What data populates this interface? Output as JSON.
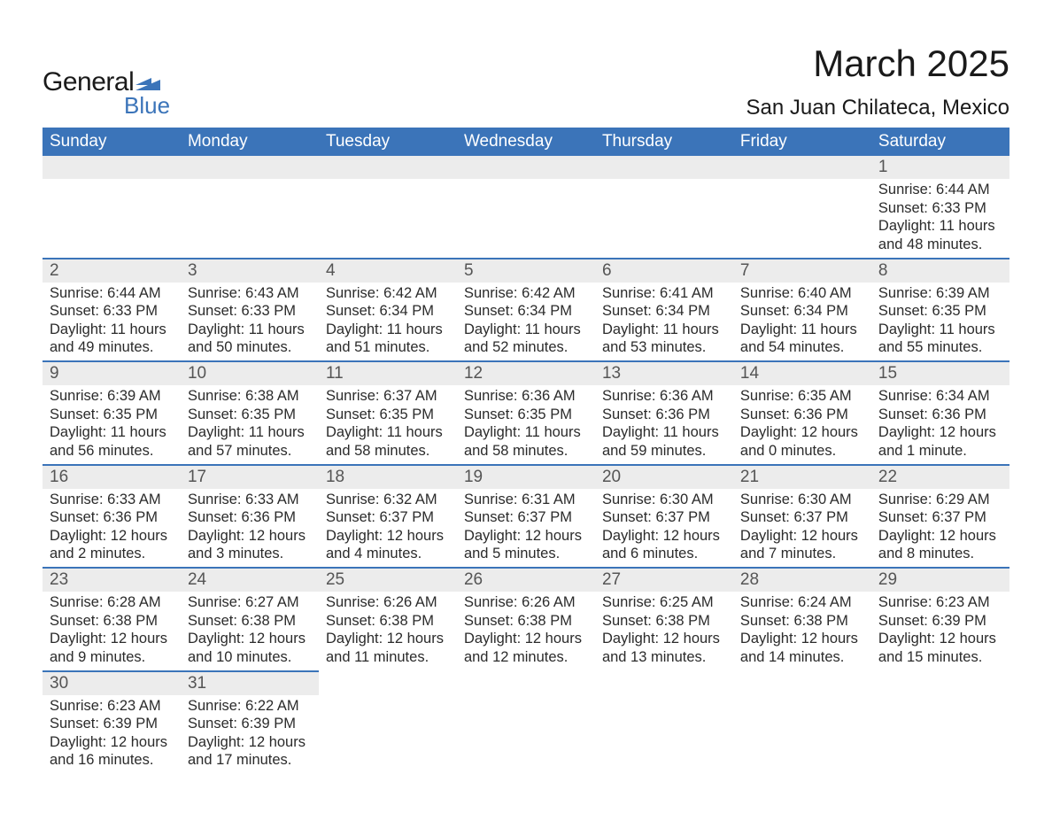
{
  "logo": {
    "text1": "General",
    "text2": "Blue",
    "flag_color": "#3b74b9"
  },
  "title": "March 2025",
  "location": "San Juan Chilateca, Mexico",
  "colors": {
    "header_bg": "#3b74b9",
    "header_text": "#ffffff",
    "daynum_bg": "#ececec",
    "daynum_text": "#555555",
    "row_border": "#3b74b9",
    "body_text": "#2b2b2b",
    "page_bg": "#ffffff"
  },
  "typography": {
    "title_fontsize": 42,
    "location_fontsize": 24,
    "header_fontsize": 19,
    "daynum_fontsize": 19,
    "body_fontsize": 16.5,
    "font_family": "Arial"
  },
  "weekdays": [
    "Sunday",
    "Monday",
    "Tuesday",
    "Wednesday",
    "Thursday",
    "Friday",
    "Saturday"
  ],
  "weeks": [
    [
      {
        "day": null
      },
      {
        "day": null
      },
      {
        "day": null
      },
      {
        "day": null
      },
      {
        "day": null
      },
      {
        "day": null
      },
      {
        "day": 1,
        "sunrise": "6:44 AM",
        "sunset": "6:33 PM",
        "daylight": "11 hours and 48 minutes."
      }
    ],
    [
      {
        "day": 2,
        "sunrise": "6:44 AM",
        "sunset": "6:33 PM",
        "daylight": "11 hours and 49 minutes."
      },
      {
        "day": 3,
        "sunrise": "6:43 AM",
        "sunset": "6:33 PM",
        "daylight": "11 hours and 50 minutes."
      },
      {
        "day": 4,
        "sunrise": "6:42 AM",
        "sunset": "6:34 PM",
        "daylight": "11 hours and 51 minutes."
      },
      {
        "day": 5,
        "sunrise": "6:42 AM",
        "sunset": "6:34 PM",
        "daylight": "11 hours and 52 minutes."
      },
      {
        "day": 6,
        "sunrise": "6:41 AM",
        "sunset": "6:34 PM",
        "daylight": "11 hours and 53 minutes."
      },
      {
        "day": 7,
        "sunrise": "6:40 AM",
        "sunset": "6:34 PM",
        "daylight": "11 hours and 54 minutes."
      },
      {
        "day": 8,
        "sunrise": "6:39 AM",
        "sunset": "6:35 PM",
        "daylight": "11 hours and 55 minutes."
      }
    ],
    [
      {
        "day": 9,
        "sunrise": "6:39 AM",
        "sunset": "6:35 PM",
        "daylight": "11 hours and 56 minutes."
      },
      {
        "day": 10,
        "sunrise": "6:38 AM",
        "sunset": "6:35 PM",
        "daylight": "11 hours and 57 minutes."
      },
      {
        "day": 11,
        "sunrise": "6:37 AM",
        "sunset": "6:35 PM",
        "daylight": "11 hours and 58 minutes."
      },
      {
        "day": 12,
        "sunrise": "6:36 AM",
        "sunset": "6:35 PM",
        "daylight": "11 hours and 58 minutes."
      },
      {
        "day": 13,
        "sunrise": "6:36 AM",
        "sunset": "6:36 PM",
        "daylight": "11 hours and 59 minutes."
      },
      {
        "day": 14,
        "sunrise": "6:35 AM",
        "sunset": "6:36 PM",
        "daylight": "12 hours and 0 minutes."
      },
      {
        "day": 15,
        "sunrise": "6:34 AM",
        "sunset": "6:36 PM",
        "daylight": "12 hours and 1 minute."
      }
    ],
    [
      {
        "day": 16,
        "sunrise": "6:33 AM",
        "sunset": "6:36 PM",
        "daylight": "12 hours and 2 minutes."
      },
      {
        "day": 17,
        "sunrise": "6:33 AM",
        "sunset": "6:36 PM",
        "daylight": "12 hours and 3 minutes."
      },
      {
        "day": 18,
        "sunrise": "6:32 AM",
        "sunset": "6:37 PM",
        "daylight": "12 hours and 4 minutes."
      },
      {
        "day": 19,
        "sunrise": "6:31 AM",
        "sunset": "6:37 PM",
        "daylight": "12 hours and 5 minutes."
      },
      {
        "day": 20,
        "sunrise": "6:30 AM",
        "sunset": "6:37 PM",
        "daylight": "12 hours and 6 minutes."
      },
      {
        "day": 21,
        "sunrise": "6:30 AM",
        "sunset": "6:37 PM",
        "daylight": "12 hours and 7 minutes."
      },
      {
        "day": 22,
        "sunrise": "6:29 AM",
        "sunset": "6:37 PM",
        "daylight": "12 hours and 8 minutes."
      }
    ],
    [
      {
        "day": 23,
        "sunrise": "6:28 AM",
        "sunset": "6:38 PM",
        "daylight": "12 hours and 9 minutes."
      },
      {
        "day": 24,
        "sunrise": "6:27 AM",
        "sunset": "6:38 PM",
        "daylight": "12 hours and 10 minutes."
      },
      {
        "day": 25,
        "sunrise": "6:26 AM",
        "sunset": "6:38 PM",
        "daylight": "12 hours and 11 minutes."
      },
      {
        "day": 26,
        "sunrise": "6:26 AM",
        "sunset": "6:38 PM",
        "daylight": "12 hours and 12 minutes."
      },
      {
        "day": 27,
        "sunrise": "6:25 AM",
        "sunset": "6:38 PM",
        "daylight": "12 hours and 13 minutes."
      },
      {
        "day": 28,
        "sunrise": "6:24 AM",
        "sunset": "6:38 PM",
        "daylight": "12 hours and 14 minutes."
      },
      {
        "day": 29,
        "sunrise": "6:23 AM",
        "sunset": "6:39 PM",
        "daylight": "12 hours and 15 minutes."
      }
    ],
    [
      {
        "day": 30,
        "sunrise": "6:23 AM",
        "sunset": "6:39 PM",
        "daylight": "12 hours and 16 minutes."
      },
      {
        "day": 31,
        "sunrise": "6:22 AM",
        "sunset": "6:39 PM",
        "daylight": "12 hours and 17 minutes."
      },
      {
        "day": null
      },
      {
        "day": null
      },
      {
        "day": null
      },
      {
        "day": null
      },
      {
        "day": null
      }
    ]
  ],
  "labels": {
    "sunrise": "Sunrise:",
    "sunset": "Sunset:",
    "daylight": "Daylight:"
  }
}
